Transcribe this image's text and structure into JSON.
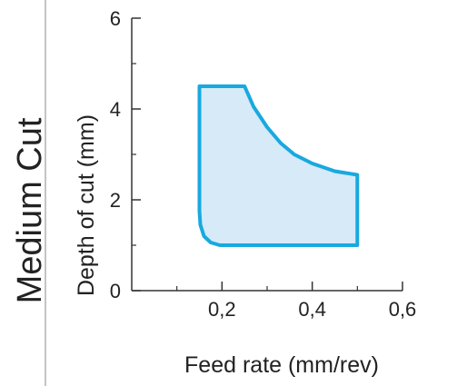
{
  "section_label": "Medium Cut",
  "chart_data": {
    "type": "area",
    "xlabel": "Feed rate (mm/rev)",
    "ylabel": "Depth of cut (mm)",
    "xlim": [
      0.0,
      0.6
    ],
    "ylim": [
      0,
      6
    ],
    "x_ticks": [
      {
        "value": 0.2,
        "label": "0,2"
      },
      {
        "value": 0.4,
        "label": "0,4"
      },
      {
        "value": 0.6,
        "label": "0,6"
      }
    ],
    "x_minor_ticks": [
      0.1,
      0.3,
      0.5
    ],
    "y_ticks": [
      {
        "value": 0,
        "label": "0"
      },
      {
        "value": 2,
        "label": "2"
      },
      {
        "value": 4,
        "label": "4"
      },
      {
        "value": 6,
        "label": "6"
      }
    ],
    "y_minor_ticks": [
      1,
      3,
      5
    ],
    "grid": false,
    "region": {
      "outline": [
        [
          0.15,
          4.5
        ],
        [
          0.25,
          4.5
        ],
        [
          0.27,
          4.05
        ],
        [
          0.3,
          3.6
        ],
        [
          0.33,
          3.25
        ],
        [
          0.36,
          3.0
        ],
        [
          0.4,
          2.8
        ],
        [
          0.45,
          2.63
        ],
        [
          0.5,
          2.55
        ],
        [
          0.5,
          1.0
        ],
        [
          0.195,
          1.0
        ],
        [
          0.175,
          1.06
        ],
        [
          0.16,
          1.2
        ],
        [
          0.152,
          1.45
        ],
        [
          0.15,
          1.75
        ]
      ],
      "stroke_color": "#18a9df",
      "fill_color": "#d6eaf8"
    },
    "colors": {
      "axis": "#333333",
      "divider": "#888888"
    }
  }
}
